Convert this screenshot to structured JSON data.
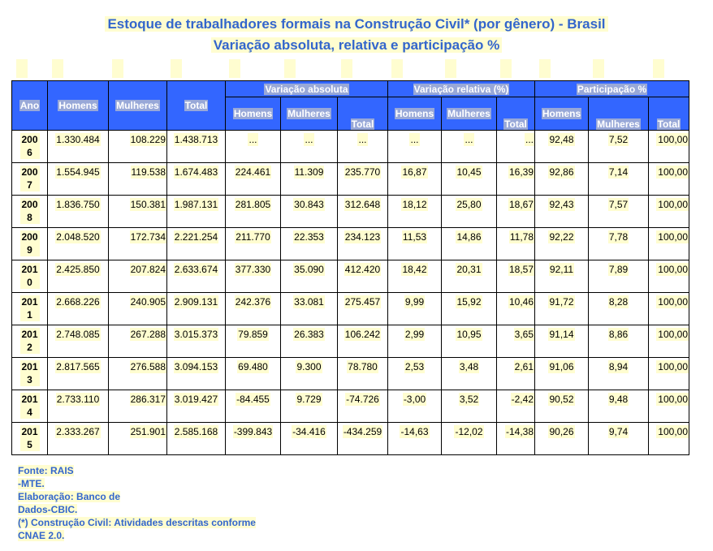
{
  "title_line1": "Estoque de trabalhadores formais na Construção Civil* (por gênero) - Brasil",
  "title_line2": "Variação absoluta, relativa e participação %",
  "headers": {
    "ano": "Ano",
    "homens": "Homens",
    "mulheres": "Mulheres",
    "total": "Total",
    "group_abs": "Variação absoluta",
    "group_rel": "Variação  relativa (%)",
    "group_part": "Participação %",
    "sub_homens": "Homens",
    "sub_mulheres": "Mulheres",
    "sub_total": "Total"
  },
  "rows": [
    {
      "ano": "2006",
      "homens": "1.330.484",
      "mulheres": "108.229",
      "total": "1.438.713",
      "abs_h": "...",
      "abs_m": "...",
      "abs_t": "...",
      "rel_h": "...",
      "rel_m": "...",
      "rel_t": "...",
      "par_h": "92,48",
      "par_m": "7,52",
      "par_t": "100,00"
    },
    {
      "ano": "2007",
      "homens": "1.554.945",
      "mulheres": "119.538",
      "total": "1.674.483",
      "abs_h": "224.461",
      "abs_m": "11.309",
      "abs_t": "235.770",
      "rel_h": "16,87",
      "rel_m": "10,45",
      "rel_t": "16,39",
      "par_h": "92,86",
      "par_m": "7,14",
      "par_t": "100,00"
    },
    {
      "ano": "2008",
      "homens": "1.836.750",
      "mulheres": "150.381",
      "total": "1.987.131",
      "abs_h": "281.805",
      "abs_m": "30.843",
      "abs_t": "312.648",
      "rel_h": "18,12",
      "rel_m": "25,80",
      "rel_t": "18,67",
      "par_h": "92,43",
      "par_m": "7,57",
      "par_t": "100,00"
    },
    {
      "ano": "2009",
      "homens": "2.048.520",
      "mulheres": "172.734",
      "total": "2.221.254",
      "abs_h": "211.770",
      "abs_m": "22.353",
      "abs_t": "234.123",
      "rel_h": "11,53",
      "rel_m": "14,86",
      "rel_t": "11,78",
      "par_h": "92,22",
      "par_m": "7,78",
      "par_t": "100,00"
    },
    {
      "ano": "2010",
      "homens": "2.425.850",
      "mulheres": "207.824",
      "total": "2.633.674",
      "abs_h": "377.330",
      "abs_m": "35.090",
      "abs_t": "412.420",
      "rel_h": "18,42",
      "rel_m": "20,31",
      "rel_t": "18,57",
      "par_h": "92,11",
      "par_m": "7,89",
      "par_t": "100,00"
    },
    {
      "ano": "2011",
      "homens": "2.668.226",
      "mulheres": "240.905",
      "total": "2.909.131",
      "abs_h": "242.376",
      "abs_m": "33.081",
      "abs_t": "275.457",
      "rel_h": "9,99",
      "rel_m": "15,92",
      "rel_t": "10,46",
      "par_h": "91,72",
      "par_m": "8,28",
      "par_t": "100,00"
    },
    {
      "ano": "2012",
      "homens": "2.748.085",
      "mulheres": "267.288",
      "total": "3.015.373",
      "abs_h": "79.859",
      "abs_m": "26.383",
      "abs_t": "106.242",
      "rel_h": "2,99",
      "rel_m": "10,95",
      "rel_t": "3,65",
      "par_h": "91,14",
      "par_m": "8,86",
      "par_t": "100,00"
    },
    {
      "ano": "2013",
      "homens": "2.817.565",
      "mulheres": "276.588",
      "total": "3.094.153",
      "abs_h": "69.480",
      "abs_m": "9.300",
      "abs_t": "78.780",
      "rel_h": "2,53",
      "rel_m": "3,48",
      "rel_t": "2,61",
      "par_h": "91,06",
      "par_m": "8,94",
      "par_t": "100,00"
    },
    {
      "ano": "2014",
      "homens": "2.733.110",
      "mulheres": "286.317",
      "total": "3.019.427",
      "abs_h": "-84.455",
      "abs_m": "9.729",
      "abs_t": "-74.726",
      "rel_h": "-3,00",
      "rel_m": "3,52",
      "rel_t": "-2,42",
      "par_h": "90,52",
      "par_m": "9,48",
      "par_t": "100,00"
    },
    {
      "ano": "2015",
      "homens": "2.333.267",
      "mulheres": "251.901",
      "total": "2.585.168",
      "abs_h": "-399.843",
      "abs_m": "-34.416",
      "abs_t": "-434.259",
      "rel_h": "-14,63",
      "rel_m": "-12,02",
      "rel_t": "-14,38",
      "par_h": "90,26",
      "par_m": "9,74",
      "par_t": "100,00"
    }
  ],
  "source": [
    "Fonte: RAIS",
    "-MTE.",
    "Elaboração: Banco de",
    "Dados-CBIC.",
    "(*) Construção Civil: Atividades descritas conforme",
    "CNAE 2.0."
  ]
}
